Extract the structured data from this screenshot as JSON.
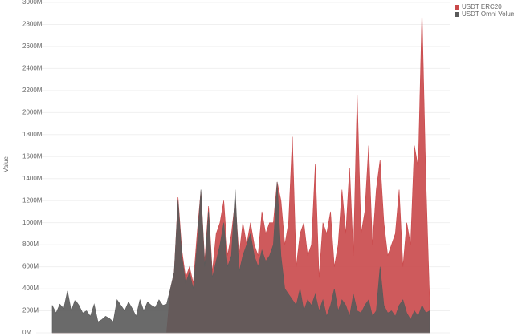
{
  "chart_data": {
    "type": "area",
    "y_label": "Value",
    "ylim": [
      0,
      3000
    ],
    "yticks": [
      {
        "value": 0,
        "label": "0M"
      },
      {
        "value": 200,
        "label": "200M"
      },
      {
        "value": 400,
        "label": "400M"
      },
      {
        "value": 600,
        "label": "600M"
      },
      {
        "value": 800,
        "label": "800M"
      },
      {
        "value": 1000,
        "label": "1000M"
      },
      {
        "value": 1200,
        "label": "1200M"
      },
      {
        "value": 1400,
        "label": "1400M"
      },
      {
        "value": 1600,
        "label": "1600M"
      },
      {
        "value": 1800,
        "label": "1800M"
      },
      {
        "value": 2000,
        "label": "2000M"
      },
      {
        "value": 2200,
        "label": "2200M"
      },
      {
        "value": 2400,
        "label": "2400M"
      },
      {
        "value": 2600,
        "label": "2600M"
      },
      {
        "value": 2800,
        "label": "2800M"
      },
      {
        "value": 3000,
        "label": "3000M"
      }
    ],
    "grid": true,
    "legend": "top-right",
    "series": [
      {
        "name": "USDT ERC20",
        "color": "#c9484a",
        "values": [
          0,
          0,
          0,
          0,
          0,
          0,
          0,
          0,
          0,
          0,
          0,
          0,
          0,
          0,
          0,
          0,
          0,
          0,
          0,
          0,
          0,
          0,
          0,
          0,
          0,
          0,
          0,
          0,
          0,
          0,
          0,
          400,
          550,
          1230,
          750,
          500,
          600,
          450,
          900,
          1290,
          650,
          1150,
          550,
          900,
          1000,
          1200,
          700,
          900,
          1200,
          700,
          1000,
          800,
          1000,
          800,
          700,
          1100,
          900,
          1000,
          1000,
          1370,
          1200,
          800,
          1000,
          1780,
          600,
          900,
          1000,
          700,
          800,
          1530,
          500,
          1000,
          900,
          1100,
          600,
          800,
          1300,
          900,
          1500,
          700,
          2160,
          900,
          1100,
          1700,
          800,
          1300,
          1570,
          1000,
          700,
          800,
          900,
          1300,
          600,
          1000,
          800,
          1700,
          1500,
          2930,
          1400,
          300
        ]
      },
      {
        "name": "USDT Omni Volume",
        "color": "#5a5a5a",
        "values": [
          250,
          180,
          260,
          220,
          380,
          200,
          300,
          250,
          180,
          200,
          150,
          260,
          100,
          120,
          150,
          130,
          100,
          300,
          250,
          200,
          280,
          220,
          150,
          300,
          200,
          280,
          250,
          230,
          300,
          250,
          260,
          400,
          550,
          1200,
          700,
          450,
          550,
          400,
          800,
          1300,
          600,
          1100,
          500,
          650,
          800,
          1000,
          600,
          700,
          1300,
          550,
          700,
          800,
          900,
          700,
          600,
          750,
          650,
          700,
          800,
          1370,
          700,
          400,
          350,
          300,
          250,
          400,
          200,
          300,
          250,
          350,
          200,
          300,
          150,
          250,
          400,
          200,
          300,
          250,
          150,
          350,
          200,
          180,
          250,
          300,
          150,
          200,
          600,
          250,
          180,
          200,
          150,
          250,
          300,
          180,
          120,
          200,
          150,
          250,
          180,
          200
        ]
      }
    ]
  }
}
